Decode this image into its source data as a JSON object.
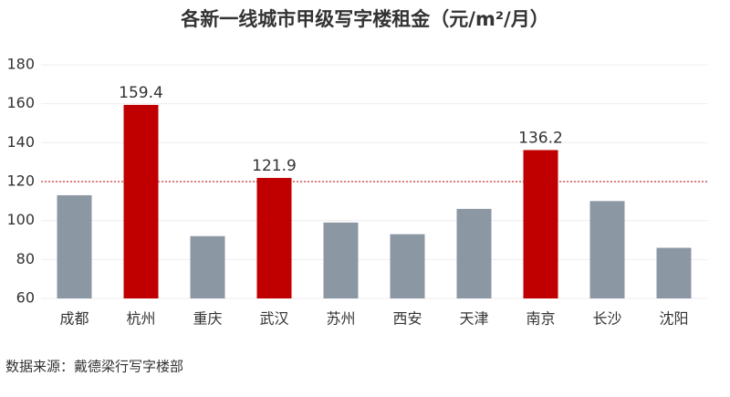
{
  "chart_data": {
    "type": "bar",
    "title": "各新一线城市甲级写字楼租金（元/m²/月）",
    "categories": [
      "成都",
      "杭州",
      "重庆",
      "武汉",
      "苏州",
      "西安",
      "天津",
      "南京",
      "长沙",
      "沈阳"
    ],
    "values": [
      113,
      159.4,
      92,
      121.9,
      99,
      93,
      106,
      136.2,
      110,
      86
    ],
    "value_labels": [
      null,
      "159.4",
      null,
      "121.9",
      null,
      null,
      null,
      "136.2",
      null,
      null
    ],
    "colors": [
      "#8c97a4",
      "#c00000",
      "#8c97a4",
      "#c00000",
      "#8c97a4",
      "#8c97a4",
      "#8c97a4",
      "#c00000",
      "#8c97a4",
      "#8c97a4"
    ],
    "ylim": [
      60,
      180
    ],
    "yticks": [
      60,
      80,
      100,
      120,
      140,
      160,
      180
    ],
    "reference_line": 120,
    "reference_color": "#c00000",
    "source": "数据来源：戴德梁行写字楼部"
  }
}
